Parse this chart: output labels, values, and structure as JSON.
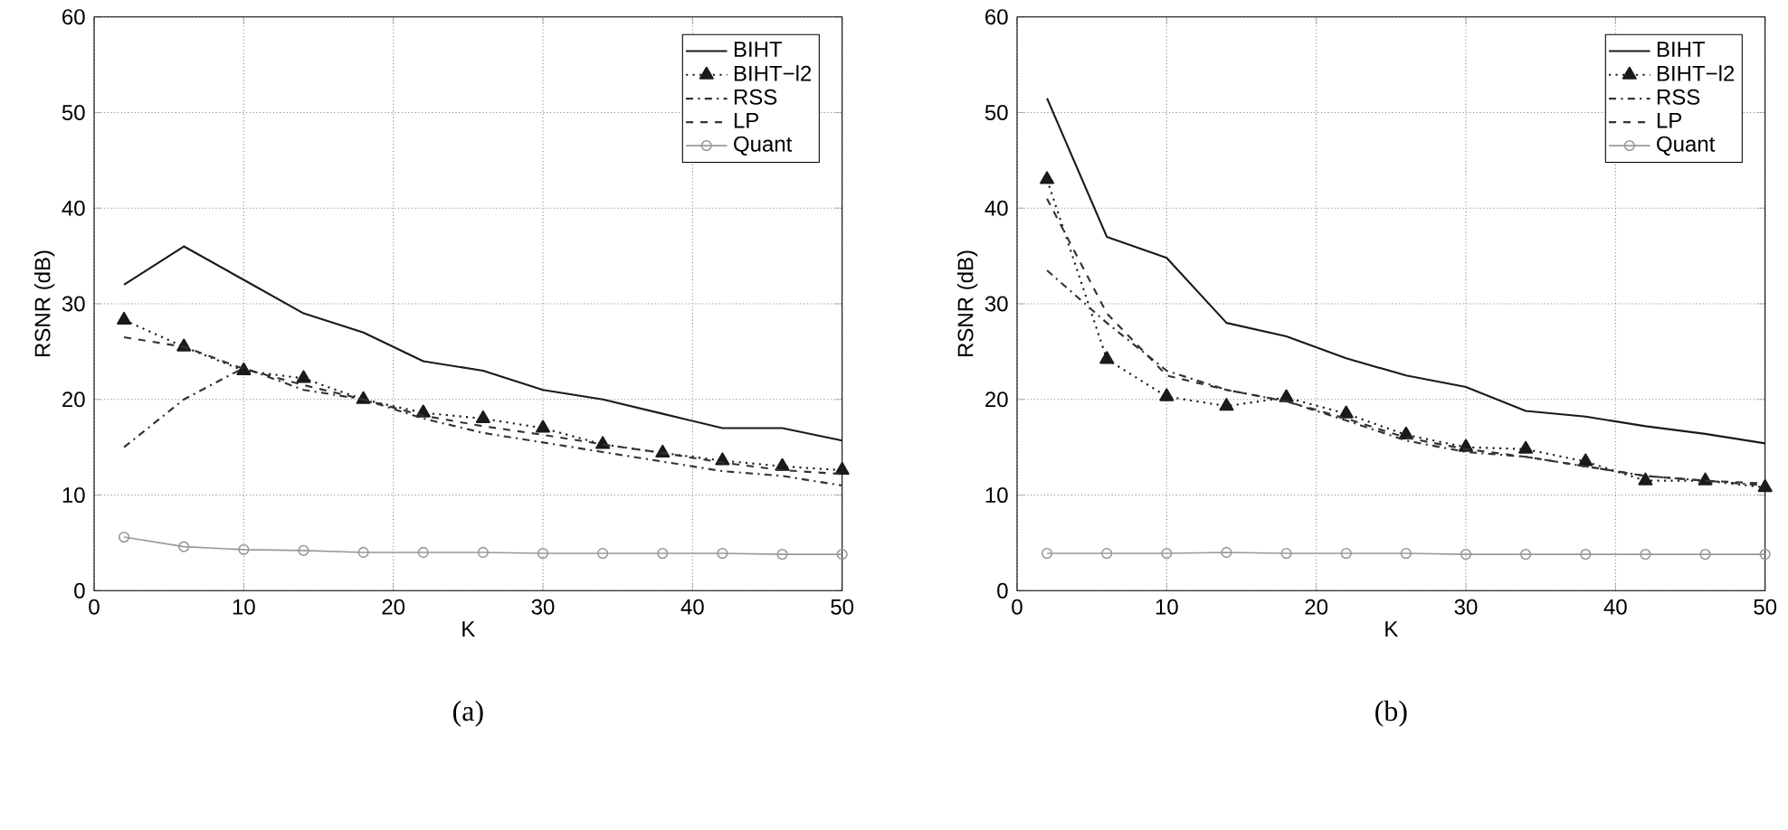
{
  "chart_data": [
    {
      "type": "line",
      "xlabel": "K",
      "ylabel": "RSNR (dB)",
      "annotations": [
        "(a)"
      ],
      "x": [
        2,
        6,
        10,
        14,
        18,
        22,
        26,
        30,
        34,
        38,
        42,
        46,
        50
      ],
      "xlim": [
        0,
        50
      ],
      "ylim": [
        0,
        60
      ],
      "xticks": [
        0,
        10,
        20,
        30,
        40,
        50
      ],
      "yticks": [
        0,
        10,
        20,
        30,
        40,
        50,
        60
      ],
      "grid": true,
      "legend": "top right",
      "series": [
        {
          "name": "BIHT",
          "color": "#1a1a1a",
          "line_style": "solid",
          "marker": "none",
          "values": [
            32,
            36,
            32.5,
            29,
            27,
            24,
            23,
            21,
            20,
            18.5,
            17,
            17,
            15.7
          ]
        },
        {
          "name": "BIHT−l2",
          "color": "#1a1a1a",
          "line_style": "dotted",
          "marker": "triangle",
          "values": [
            28.3,
            25.5,
            23,
            22.2,
            20,
            18.6,
            18,
            17,
            15.3,
            14.4,
            13.6,
            13,
            12.6
          ]
        },
        {
          "name": "RSS",
          "color": "#333333",
          "line_style": "dashdot",
          "marker": "none",
          "values": [
            15,
            20,
            23.3,
            21,
            20,
            18,
            16.5,
            15.5,
            14.5,
            13.5,
            12.5,
            12,
            11
          ]
        },
        {
          "name": "LP",
          "color": "#333333",
          "line_style": "dashed",
          "marker": "none",
          "values": [
            26.5,
            25.5,
            23.2,
            21.5,
            20,
            18.3,
            17.2,
            16.3,
            15.3,
            14.4,
            13.4,
            12.6,
            12.2
          ]
        },
        {
          "name": "Quant",
          "color": "#999999",
          "line_style": "solid",
          "marker": "circle",
          "values": [
            5.6,
            4.6,
            4.3,
            4.2,
            4,
            4,
            4,
            3.9,
            3.9,
            3.9,
            3.9,
            3.8,
            3.8
          ]
        }
      ]
    },
    {
      "type": "line",
      "xlabel": "K",
      "ylabel": "RSNR (dB)",
      "annotations": [
        "(b)"
      ],
      "x": [
        2,
        6,
        10,
        14,
        18,
        22,
        26,
        30,
        34,
        38,
        42,
        46,
        50
      ],
      "xlim": [
        0,
        50
      ],
      "ylim": [
        0,
        60
      ],
      "xticks": [
        0,
        10,
        20,
        30,
        40,
        50
      ],
      "yticks": [
        0,
        10,
        20,
        30,
        40,
        50,
        60
      ],
      "grid": true,
      "legend": "top right",
      "series": [
        {
          "name": "BIHT",
          "color": "#1a1a1a",
          "line_style": "solid",
          "marker": "none",
          "values": [
            51.5,
            37,
            34.8,
            28,
            26.6,
            24.3,
            22.5,
            21.3,
            18.8,
            18.2,
            17.2,
            16.4,
            15.4
          ]
        },
        {
          "name": "BIHT−l2",
          "color": "#1a1a1a",
          "line_style": "dotted",
          "marker": "triangle",
          "values": [
            43,
            24.2,
            20.3,
            19.3,
            20.2,
            18.5,
            16.3,
            15,
            14.8,
            13.5,
            11.5,
            11.5,
            10.8
          ]
        },
        {
          "name": "RSS",
          "color": "#333333",
          "line_style": "dashdot",
          "marker": "none",
          "values": [
            33.5,
            28,
            23,
            21,
            19.8,
            17.8,
            15.7,
            14.5,
            14,
            13,
            12,
            11.5,
            11
          ]
        },
        {
          "name": "LP",
          "color": "#333333",
          "line_style": "dashed",
          "marker": "none",
          "values": [
            41,
            29,
            22.5,
            21,
            19.8,
            18,
            16,
            14.8,
            14,
            13,
            12,
            11.5,
            11.2
          ]
        },
        {
          "name": "Quant",
          "color": "#999999",
          "line_style": "solid",
          "marker": "circle",
          "values": [
            3.9,
            3.9,
            3.9,
            4,
            3.9,
            3.9,
            3.9,
            3.8,
            3.8,
            3.8,
            3.8,
            3.8,
            3.8
          ]
        }
      ]
    }
  ]
}
